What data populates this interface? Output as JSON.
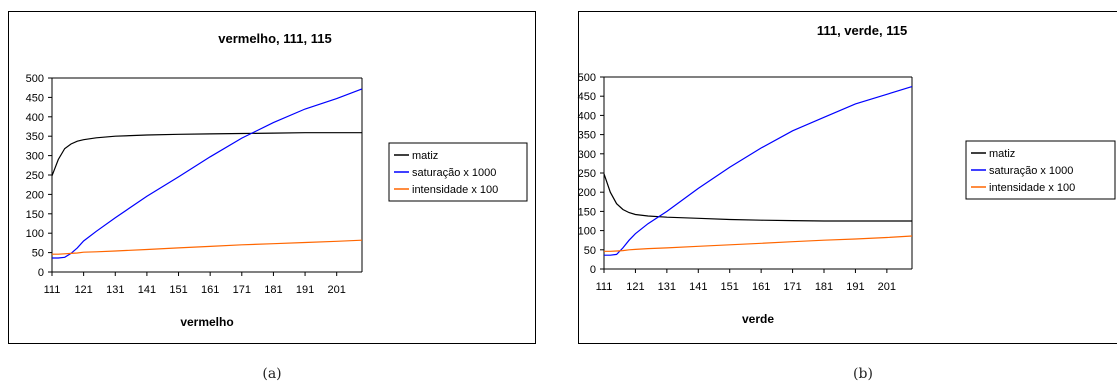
{
  "captions": [
    "(a)",
    "(b)"
  ],
  "chart_data": [
    {
      "type": "line",
      "title": "vermelho, 111, 115",
      "xlabel": "vermelho",
      "ylabel": "",
      "ylim": [
        0,
        500
      ],
      "yticks": [
        0,
        50,
        100,
        150,
        200,
        250,
        300,
        350,
        400,
        450,
        500
      ],
      "xlim": [
        111,
        209
      ],
      "xtick_labels": [
        "111",
        "121",
        "131",
        "141",
        "151",
        "161",
        "171",
        "181",
        "191",
        "201"
      ],
      "grid": false,
      "legend_position": "right",
      "x": [
        111,
        113,
        115,
        117,
        119,
        121,
        125,
        131,
        141,
        151,
        161,
        171,
        181,
        191,
        201,
        209
      ],
      "series": [
        {
          "name": "matiz",
          "color": "#000000",
          "values": [
            248,
            290,
            318,
            330,
            337,
            341,
            346,
            350,
            353,
            355,
            356,
            357,
            358,
            359,
            359,
            359
          ]
        },
        {
          "name": "saturação x 1000",
          "color": "#0000ff",
          "values": [
            36,
            36,
            38,
            48,
            62,
            80,
            105,
            140,
            195,
            245,
            297,
            345,
            385,
            420,
            447,
            472
          ]
        },
        {
          "name": "intensidade x 100",
          "color": "#ff6600",
          "values": [
            46,
            46,
            47,
            48,
            49,
            51,
            52,
            54,
            58,
            62,
            66,
            70,
            73,
            76,
            79,
            82
          ]
        }
      ]
    },
    {
      "type": "line",
      "title": "111, verde, 115",
      "xlabel": "verde",
      "ylabel": "",
      "ylim": [
        0,
        500
      ],
      "yticks": [
        0,
        50,
        100,
        150,
        200,
        250,
        300,
        350,
        400,
        450,
        500
      ],
      "xlim": [
        111,
        209
      ],
      "xtick_labels": [
        "111",
        "121",
        "131",
        "141",
        "151",
        "161",
        "171",
        "181",
        "191",
        "201"
      ],
      "grid": false,
      "legend_position": "right",
      "x": [
        111,
        113,
        115,
        117,
        119,
        121,
        125,
        131,
        141,
        151,
        161,
        171,
        181,
        191,
        201,
        209
      ],
      "series": [
        {
          "name": "matiz",
          "color": "#000000",
          "values": [
            248,
            200,
            170,
            155,
            147,
            142,
            138,
            135,
            132,
            129,
            127,
            126,
            125,
            125,
            125,
            125
          ]
        },
        {
          "name": "saturação x 1000",
          "color": "#0000ff",
          "values": [
            36,
            36,
            38,
            55,
            75,
            92,
            118,
            150,
            210,
            265,
            315,
            360,
            395,
            430,
            455,
            475
          ]
        },
        {
          "name": "intensidade x 100",
          "color": "#ff6600",
          "values": [
            46,
            46,
            47,
            48,
            50,
            51,
            53,
            55,
            59,
            63,
            67,
            71,
            75,
            78,
            82,
            86
          ]
        }
      ]
    }
  ]
}
